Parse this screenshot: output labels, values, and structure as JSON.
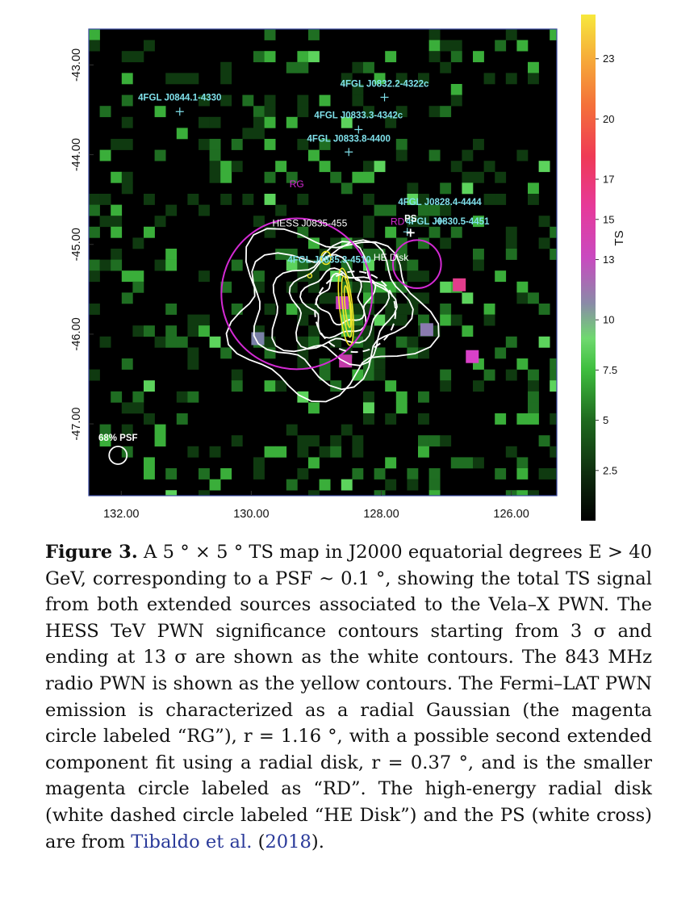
{
  "chart_data": {
    "type": "heatmap",
    "title": "",
    "xlabel": "",
    "ylabel": "",
    "x_ticks": [
      "132.00",
      "130.00",
      "128.00",
      "126.00"
    ],
    "x_tick_values": [
      132,
      130,
      128,
      126
    ],
    "y_ticks": [
      "-43.00",
      "-44.00",
      "-45.00",
      "-46.00",
      "-47.00"
    ],
    "y_tick_values": [
      -43,
      -44,
      -45,
      -46,
      -47
    ],
    "xlim": [
      132.5,
      125.3
    ],
    "ylim": [
      -47.8,
      -42.6
    ],
    "colorbar": {
      "label": "TS",
      "ticks": [
        "2.5",
        "5",
        "7.5",
        "10",
        "13",
        "15",
        "17",
        "20",
        "23"
      ],
      "tick_values": [
        2.5,
        5,
        7.5,
        10,
        13,
        15,
        17,
        20,
        23
      ],
      "range": [
        0,
        25.2
      ],
      "colors": [
        "#000000",
        "#1a4a1a",
        "#2e8b2e",
        "#4bd14b",
        "#7a7fa0",
        "#c23fb8",
        "#e8386a",
        "#f5803a",
        "#f5e83c"
      ]
    },
    "sources": [
      {
        "name": "4FGL J0844.1-4330",
        "ra": 131.1,
        "dec": -43.52
      },
      {
        "name": "4FGL J0832.2-4322c",
        "ra": 127.95,
        "dec": -43.36
      },
      {
        "name": "4FGL J0833.3-4342c",
        "ra": 128.35,
        "dec": -43.72
      },
      {
        "name": "4FGL J0833.8-4400",
        "ra": 128.5,
        "dec": -43.97
      },
      {
        "name": "4FGL J0828.4-4444",
        "ra": 127.1,
        "dec": -44.74
      },
      {
        "name": "4FGL J0830.5-4451",
        "ra": 127.6,
        "dec": -44.86
      },
      {
        "name": "4FGL J0835.3-4510",
        "ra": 128.8,
        "dec": -45.17
      },
      {
        "name": "PS",
        "ra": 127.55,
        "dec": -44.87
      }
    ],
    "regions": [
      {
        "label": "RG",
        "ra": 129.3,
        "dec": -45.55,
        "r": 1.16,
        "style": "solid",
        "color": "#d42ad4"
      },
      {
        "label": "RD",
        "ra": 127.45,
        "dec": -45.22,
        "r": 0.37,
        "style": "solid",
        "color": "#d42ad4"
      },
      {
        "label": "HE Disk",
        "ra": 128.4,
        "dec": -45.75,
        "r": 0.62,
        "style": "dashed",
        "color": "#ffffff"
      }
    ],
    "contour_labels": {
      "hess": "HESS J0835-455"
    },
    "psf": {
      "label": "68% PSF",
      "ra": 132.05,
      "dec": -47.35
    }
  },
  "caption": {
    "lead": "Figure 3.",
    "text": "A 5 ° × 5 ° TS map in J2000 equatorial degrees E > 40 GeV, corresponding to a PSF ~ 0.1 °, showing the total TS signal from both extended sources associated to the Vela–X PWN. The HESS TeV PWN significance contours starting from 3 σ and ending at 13 σ are shown as the white contours. The 843 MHz radio PWN is shown as the yellow contours. The Fermi–LAT PWN emission is characterized as a radial Gaussian (the magenta circle labeled “RG”), r = 1.16 °, with a possible second extended component fit using a radial disk, r = 0.37 °, and is the smaller magenta circle labeled as “RD”. The high-energy radial disk (white dashed circle labeled “HE Disk”) and the PS (white cross) are from",
    "citation": "Tibaldo et al.",
    "citation_year": "2018",
    "tail": "."
  }
}
